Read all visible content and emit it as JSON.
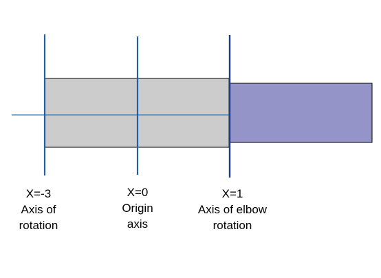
{
  "colors": {
    "background": "#ffffff",
    "grey_block": "#cccccc",
    "blue_block": "#9494c9",
    "block_outline": "#000000",
    "axis_lines": "#1f5fa5",
    "elbow_axis_line": "#1e3a8a",
    "horizontal_axis": "#2a7ab8"
  },
  "labels": {
    "x_neg3": {
      "line1": "X=-3",
      "line2": "Axis of",
      "line3": "rotation"
    },
    "x_0": {
      "line1": "X=0",
      "line2": "Origin",
      "line3": "axis"
    },
    "x_1": {
      "line1": "X=1",
      "line2": "Axis of elbow",
      "line3": "rotation"
    }
  }
}
